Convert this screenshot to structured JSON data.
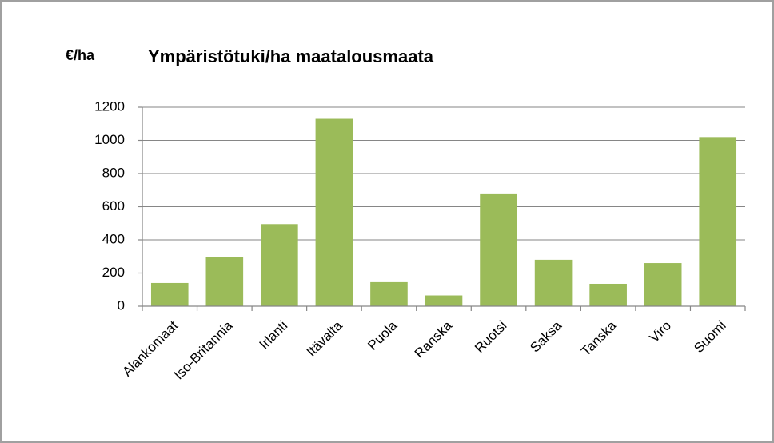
{
  "chart_data": {
    "type": "bar",
    "title": "Ympäristötuki/ha maatalousmaata",
    "y_label": "€/ha",
    "categories": [
      "Alankomaat",
      "Iso-Britannia",
      "Irlanti",
      "Itävalta",
      "Puola",
      "Ranska",
      "Ruotsi",
      "Saksa",
      "Tanska",
      "Viro",
      "Suomi"
    ],
    "values": [
      140,
      295,
      495,
      1130,
      145,
      65,
      680,
      280,
      135,
      260,
      1020
    ],
    "color": "#9bbb59",
    "ylim": [
      0,
      1200
    ],
    "yticks": [
      0,
      200,
      400,
      600,
      800,
      1000,
      1200
    ],
    "grid": true
  }
}
